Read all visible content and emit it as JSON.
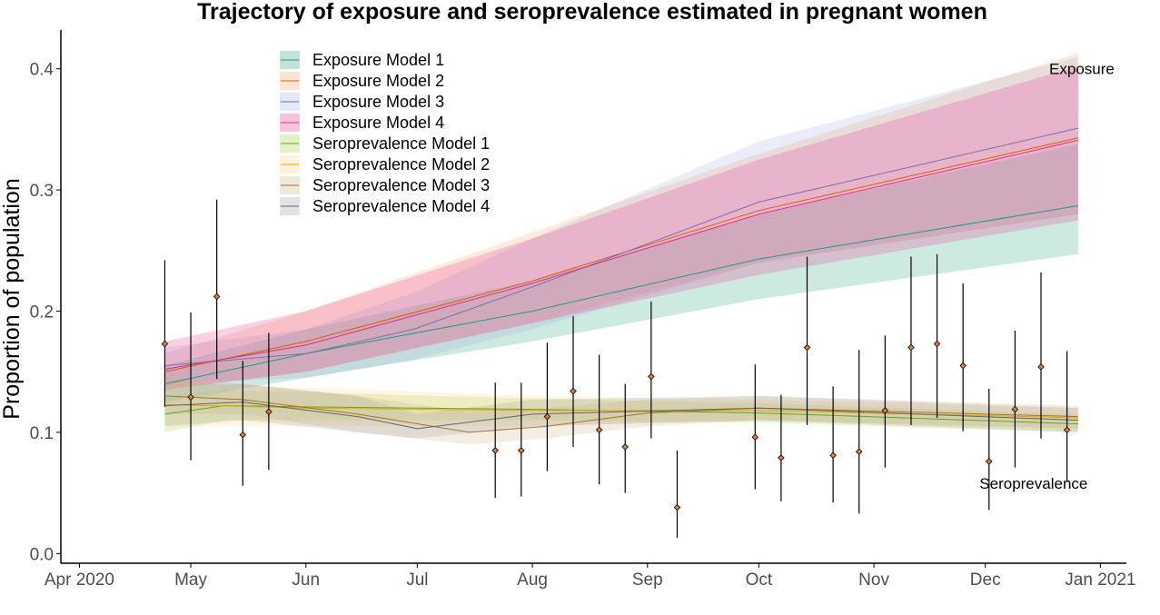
{
  "chart_data": {
    "type": "line",
    "title": "Trajectory of exposure and seroprevalence estimated in pregnant women",
    "xlabel": "",
    "ylabel": "Proportion of population",
    "x_axis": {
      "type": "date",
      "range": [
        "2020-03-27",
        "2021-01-08"
      ],
      "ticks": [
        {
          "date": "2020-04-01",
          "label": "Apr 2020"
        },
        {
          "date": "2020-05-01",
          "label": "May"
        },
        {
          "date": "2020-06-01",
          "label": "Jun"
        },
        {
          "date": "2020-07-01",
          "label": "Jul"
        },
        {
          "date": "2020-08-01",
          "label": "Aug"
        },
        {
          "date": "2020-09-01",
          "label": "Sep"
        },
        {
          "date": "2020-10-01",
          "label": "Oct"
        },
        {
          "date": "2020-11-01",
          "label": "Nov"
        },
        {
          "date": "2020-12-01",
          "label": "Dec"
        },
        {
          "date": "2021-01-01",
          "label": "Jan 2021"
        }
      ]
    },
    "y_axis": {
      "range": [
        -0.008,
        0.432
      ],
      "ticks": [
        {
          "value": 0.0,
          "label": "0.0"
        },
        {
          "value": 0.1,
          "label": "0.1"
        },
        {
          "value": 0.2,
          "label": "0.2"
        },
        {
          "value": 0.3,
          "label": "0.3"
        },
        {
          "value": 0.4,
          "label": "0.4"
        }
      ]
    },
    "grid": false,
    "legend_position": "top-left",
    "annotations": [
      {
        "text": "Exposure",
        "date": "2020-12-27",
        "y": 0.4
      },
      {
        "text": "Seroprevalence",
        "date": "2020-12-14",
        "y": 0.058
      }
    ],
    "series": [
      {
        "name": "Exposure Model 1",
        "line_color": "#1b9e77",
        "fill_color": "#1b9e77",
        "points": [
          {
            "x": "2020-04-24",
            "y": 0.14,
            "lo": 0.125,
            "hi": 0.155
          },
          {
            "x": "2020-06-01",
            "y": 0.165,
            "lo": 0.145,
            "hi": 0.185
          },
          {
            "x": "2020-08-01",
            "y": 0.2,
            "lo": 0.175,
            "hi": 0.225
          },
          {
            "x": "2020-10-01",
            "y": 0.243,
            "lo": 0.21,
            "hi": 0.28
          },
          {
            "x": "2020-12-26",
            "y": 0.287,
            "lo": 0.247,
            "hi": 0.338
          }
        ]
      },
      {
        "name": "Exposure Model 2",
        "line_color": "#d95f02",
        "fill_color": "#f4a460",
        "points": [
          {
            "x": "2020-04-24",
            "y": 0.15,
            "lo": 0.135,
            "hi": 0.165
          },
          {
            "x": "2020-06-01",
            "y": 0.175,
            "lo": 0.15,
            "hi": 0.2
          },
          {
            "x": "2020-08-01",
            "y": 0.225,
            "lo": 0.19,
            "hi": 0.265
          },
          {
            "x": "2020-10-01",
            "y": 0.283,
            "lo": 0.24,
            "hi": 0.33
          },
          {
            "x": "2020-12-26",
            "y": 0.343,
            "lo": 0.28,
            "hi": 0.413
          }
        ]
      },
      {
        "name": "Exposure Model 3",
        "line_color": "#7570b3",
        "fill_color": "#9fa8da",
        "points": [
          {
            "x": "2020-04-24",
            "y": 0.155,
            "lo": 0.14,
            "hi": 0.17
          },
          {
            "x": "2020-06-01",
            "y": 0.165,
            "lo": 0.145,
            "hi": 0.185
          },
          {
            "x": "2020-06-30",
            "y": 0.185,
            "lo": 0.16,
            "hi": 0.215
          },
          {
            "x": "2020-08-01",
            "y": 0.22,
            "lo": 0.185,
            "hi": 0.26
          },
          {
            "x": "2020-10-01",
            "y": 0.29,
            "lo": 0.24,
            "hi": 0.34
          },
          {
            "x": "2020-12-26",
            "y": 0.351,
            "lo": 0.28,
            "hi": 0.41
          }
        ]
      },
      {
        "name": "Exposure Model 4",
        "line_color": "#e7298a",
        "fill_color": "#e7298a",
        "points": [
          {
            "x": "2020-04-24",
            "y": 0.152,
            "lo": 0.135,
            "hi": 0.175
          },
          {
            "x": "2020-06-01",
            "y": 0.172,
            "lo": 0.15,
            "hi": 0.2
          },
          {
            "x": "2020-08-01",
            "y": 0.223,
            "lo": 0.19,
            "hi": 0.26
          },
          {
            "x": "2020-10-01",
            "y": 0.28,
            "lo": 0.23,
            "hi": 0.325
          },
          {
            "x": "2020-12-26",
            "y": 0.341,
            "lo": 0.275,
            "hi": 0.402
          }
        ]
      },
      {
        "name": "Seroprevalence Model 1",
        "line_color": "#66a61e",
        "fill_color": "#9acd32",
        "points": [
          {
            "x": "2020-04-24",
            "y": 0.115,
            "lo": 0.1,
            "hi": 0.13
          },
          {
            "x": "2020-05-10",
            "y": 0.122,
            "lo": 0.11,
            "hi": 0.135
          },
          {
            "x": "2020-06-01",
            "y": 0.121,
            "lo": 0.11,
            "hi": 0.133
          },
          {
            "x": "2020-08-01",
            "y": 0.119,
            "lo": 0.11,
            "hi": 0.128
          },
          {
            "x": "2020-10-01",
            "y": 0.116,
            "lo": 0.108,
            "hi": 0.124
          },
          {
            "x": "2020-12-26",
            "y": 0.107,
            "lo": 0.1,
            "hi": 0.115
          }
        ]
      },
      {
        "name": "Seroprevalence Model 2",
        "line_color": "#e6ab02",
        "fill_color": "#ffd27f",
        "points": [
          {
            "x": "2020-04-24",
            "y": 0.123,
            "lo": 0.105,
            "hi": 0.14
          },
          {
            "x": "2020-06-01",
            "y": 0.12,
            "lo": 0.105,
            "hi": 0.137
          },
          {
            "x": "2020-08-01",
            "y": 0.118,
            "lo": 0.105,
            "hi": 0.13
          },
          {
            "x": "2020-10-01",
            "y": 0.118,
            "lo": 0.11,
            "hi": 0.127
          },
          {
            "x": "2020-12-26",
            "y": 0.112,
            "lo": 0.103,
            "hi": 0.12
          }
        ]
      },
      {
        "name": "Seroprevalence Model 3",
        "line_color": "#a6761d",
        "fill_color": "#c9ad7e",
        "points": [
          {
            "x": "2020-04-24",
            "y": 0.13,
            "lo": 0.115,
            "hi": 0.145
          },
          {
            "x": "2020-05-15",
            "y": 0.127,
            "lo": 0.115,
            "hi": 0.14
          },
          {
            "x": "2020-06-15",
            "y": 0.115,
            "lo": 0.1,
            "hi": 0.13
          },
          {
            "x": "2020-07-15",
            "y": 0.1,
            "lo": 0.09,
            "hi": 0.117
          },
          {
            "x": "2020-08-05",
            "y": 0.105,
            "lo": 0.095,
            "hi": 0.12
          },
          {
            "x": "2020-09-01",
            "y": 0.116,
            "lo": 0.105,
            "hi": 0.127
          },
          {
            "x": "2020-10-01",
            "y": 0.12,
            "lo": 0.11,
            "hi": 0.13
          },
          {
            "x": "2020-12-26",
            "y": 0.113,
            "lo": 0.103,
            "hi": 0.122
          }
        ]
      },
      {
        "name": "Seroprevalence Model 4",
        "line_color": "#666666",
        "fill_color": "#999999",
        "points": [
          {
            "x": "2020-04-24",
            "y": 0.122,
            "lo": 0.105,
            "hi": 0.14
          },
          {
            "x": "2020-05-15",
            "y": 0.125,
            "lo": 0.11,
            "hi": 0.14
          },
          {
            "x": "2020-06-15",
            "y": 0.113,
            "lo": 0.1,
            "hi": 0.13
          },
          {
            "x": "2020-07-01",
            "y": 0.103,
            "lo": 0.095,
            "hi": 0.115
          },
          {
            "x": "2020-08-01",
            "y": 0.115,
            "lo": 0.105,
            "hi": 0.127
          },
          {
            "x": "2020-10-01",
            "y": 0.12,
            "lo": 0.11,
            "hi": 0.13
          },
          {
            "x": "2020-12-26",
            "y": 0.11,
            "lo": 0.1,
            "hi": 0.12
          }
        ]
      }
    ],
    "observations": {
      "marker_color": "#e07b39",
      "points": [
        {
          "x": "2020-04-24",
          "y": 0.173,
          "lo": 0.121,
          "hi": 0.242
        },
        {
          "x": "2020-05-01",
          "y": 0.129,
          "lo": 0.077,
          "hi": 0.199
        },
        {
          "x": "2020-05-08",
          "y": 0.212,
          "lo": 0.144,
          "hi": 0.292
        },
        {
          "x": "2020-05-15",
          "y": 0.098,
          "lo": 0.056,
          "hi": 0.159
        },
        {
          "x": "2020-05-22",
          "y": 0.117,
          "lo": 0.069,
          "hi": 0.182
        },
        {
          "x": "2020-07-22",
          "y": 0.085,
          "lo": 0.046,
          "hi": 0.141
        },
        {
          "x": "2020-07-29",
          "y": 0.085,
          "lo": 0.047,
          "hi": 0.141
        },
        {
          "x": "2020-08-05",
          "y": 0.113,
          "lo": 0.068,
          "hi": 0.174
        },
        {
          "x": "2020-08-12",
          "y": 0.134,
          "lo": 0.088,
          "hi": 0.196
        },
        {
          "x": "2020-08-19",
          "y": 0.102,
          "lo": 0.057,
          "hi": 0.164
        },
        {
          "x": "2020-08-26",
          "y": 0.088,
          "lo": 0.05,
          "hi": 0.14
        },
        {
          "x": "2020-09-02",
          "y": 0.146,
          "lo": 0.095,
          "hi": 0.208
        },
        {
          "x": "2020-09-09",
          "y": 0.038,
          "lo": 0.013,
          "hi": 0.085
        },
        {
          "x": "2020-09-30",
          "y": 0.096,
          "lo": 0.053,
          "hi": 0.156
        },
        {
          "x": "2020-10-07",
          "y": 0.079,
          "lo": 0.043,
          "hi": 0.131
        },
        {
          "x": "2020-10-14",
          "y": 0.17,
          "lo": 0.106,
          "hi": 0.245
        },
        {
          "x": "2020-10-21",
          "y": 0.081,
          "lo": 0.042,
          "hi": 0.138
        },
        {
          "x": "2020-10-28",
          "y": 0.084,
          "lo": 0.033,
          "hi": 0.168
        },
        {
          "x": "2020-11-04",
          "y": 0.118,
          "lo": 0.071,
          "hi": 0.18
        },
        {
          "x": "2020-11-11",
          "y": 0.17,
          "lo": 0.106,
          "hi": 0.245
        },
        {
          "x": "2020-11-18",
          "y": 0.173,
          "lo": 0.112,
          "hi": 0.247
        },
        {
          "x": "2020-11-25",
          "y": 0.155,
          "lo": 0.101,
          "hi": 0.223
        },
        {
          "x": "2020-12-02",
          "y": 0.076,
          "lo": 0.036,
          "hi": 0.136
        },
        {
          "x": "2020-12-09",
          "y": 0.119,
          "lo": 0.071,
          "hi": 0.184
        },
        {
          "x": "2020-12-16",
          "y": 0.154,
          "lo": 0.095,
          "hi": 0.232
        },
        {
          "x": "2020-12-23",
          "y": 0.102,
          "lo": 0.059,
          "hi": 0.167
        }
      ]
    }
  }
}
